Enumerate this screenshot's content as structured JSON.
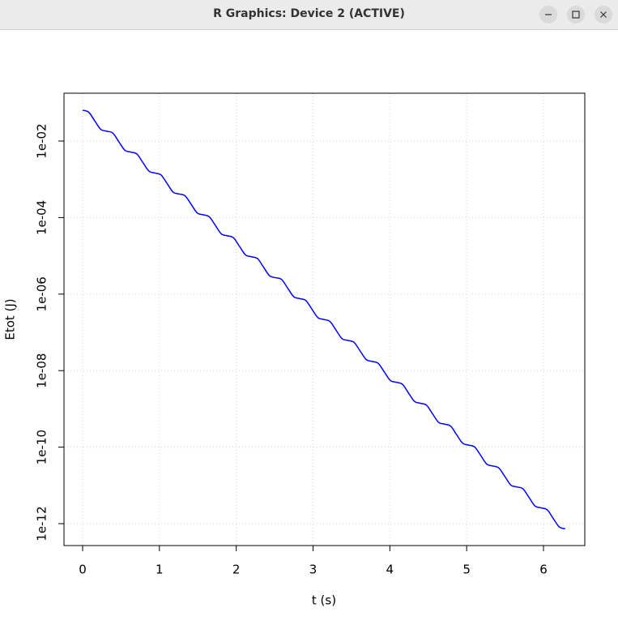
{
  "window": {
    "title": "R Graphics: Device 2 (ACTIVE)"
  },
  "chart_data": {
    "type": "line",
    "log_y": true,
    "grid": true,
    "xlabel": "t (s)",
    "ylabel": "Etot (J)",
    "xlim": [
      -0.2425,
      6.538
    ],
    "ylim": [
      2.68e-13,
      0.178
    ],
    "xticks": [
      0,
      1,
      2,
      3,
      4,
      5,
      6
    ],
    "yticks": [
      {
        "value": 1e-12,
        "label": "1e-12"
      },
      {
        "value": 1e-10,
        "label": "1e-10"
      },
      {
        "value": 1e-08,
        "label": "1e-08"
      },
      {
        "value": 1e-06,
        "label": "1e-06"
      },
      {
        "value": 0.0001,
        "label": "1e-04"
      },
      {
        "value": 0.01,
        "label": "1e-02"
      }
    ],
    "x": [
      0,
      0.079,
      0.157,
      0.236,
      0.314,
      0.393,
      0.471,
      0.55,
      0.628,
      0.707,
      0.785,
      0.864,
      0.942,
      1.021,
      1.1,
      1.178,
      1.257,
      1.335,
      1.414,
      1.492,
      1.571,
      1.649,
      1.728,
      1.806,
      1.885,
      1.963,
      2.042,
      2.121,
      2.199,
      2.278,
      2.356,
      2.435,
      2.513,
      2.592,
      2.67,
      2.749,
      2.827,
      2.906,
      2.985,
      3.063,
      3.142,
      3.22,
      3.299,
      3.377,
      3.456,
      3.534,
      3.613,
      3.691,
      3.77,
      3.848,
      3.927,
      4.006,
      4.084,
      4.163,
      4.241,
      4.32,
      4.398,
      4.477,
      4.555,
      4.634,
      4.712,
      4.791,
      4.869,
      4.948,
      5.027,
      5.105,
      5.184,
      5.262,
      5.341,
      5.419,
      5.498,
      5.576,
      5.655,
      5.733,
      5.812,
      5.89,
      5.969,
      6.048,
      6.126,
      6.205,
      6.283
    ],
    "series": [
      {
        "color": "#0000ff",
        "values": [
          0.0638,
          0.0569,
          0.034,
          0.0203,
          0.0181,
          0.0162,
          0.00965,
          0.00577,
          0.00514,
          0.00459,
          0.00274,
          0.00164,
          0.00146,
          0.0013,
          0.000778,
          0.000464,
          0.000414,
          0.000369,
          0.000221,
          0.000132,
          0.000118,
          0.000105,
          6.26e-05,
          3.74e-05,
          3.34e-05,
          2.98e-05,
          1.78e-05,
          1.06e-05,
          9.47e-06,
          8.44e-06,
          5.05e-06,
          3.01e-06,
          2.69e-06,
          2.4e-06,
          1.43e-06,
          8.55e-07,
          7.63e-07,
          6.8e-07,
          4.06e-07,
          2.43e-07,
          2.17e-07,
          1.93e-07,
          1.15e-07,
          6.89e-08,
          6.14e-08,
          5.48e-08,
          3.27e-08,
          1.96e-08,
          1.74e-08,
          1.55e-08,
          9.29e-09,
          5.55e-09,
          4.95e-09,
          4.41e-09,
          2.64e-09,
          1.58e-09,
          1.4e-09,
          1.25e-09,
          7.48e-10,
          4.47e-10,
          3.99e-10,
          3.56e-10,
          2.12e-10,
          1.27e-10,
          1.13e-10,
          1.01e-10,
          6.03e-11,
          3.6e-11,
          3.21e-11,
          2.86e-11,
          1.71e-11,
          1.02e-11,
          9.11e-12,
          8.13e-12,
          4.86e-12,
          2.9e-12,
          2.59e-12,
          2.31e-12,
          1.38e-12,
          8.24e-13,
          7.34e-13
        ]
      }
    ]
  }
}
